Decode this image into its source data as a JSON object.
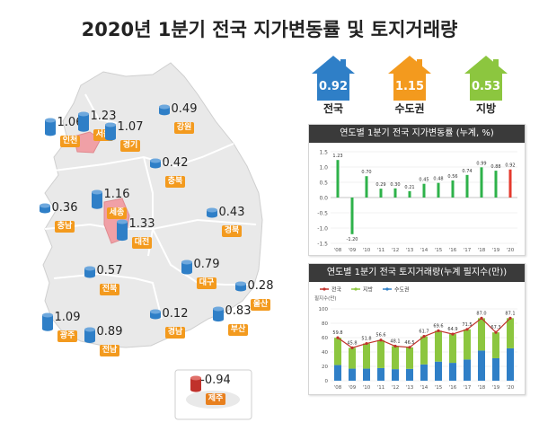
{
  "title": "2020년 1분기 전국 지가변동률 및 토지거래량",
  "summary": [
    {
      "value": "0.92",
      "label": "전국",
      "color": "#2f7fc7"
    },
    {
      "value": "1.15",
      "label": "수도권",
      "color": "#f39a1e"
    },
    {
      "value": "0.53",
      "label": "지방",
      "color": "#8cc63f"
    }
  ],
  "regions": [
    {
      "name": "인천",
      "value": "1.06",
      "level": 1.06
    },
    {
      "name": "서울",
      "value": "1.23",
      "level": 1.23
    },
    {
      "name": "경기",
      "value": "1.07",
      "level": 1.07
    },
    {
      "name": "강원",
      "value": "0.49",
      "level": 0.49
    },
    {
      "name": "충북",
      "value": "0.42",
      "level": 0.42
    },
    {
      "name": "세종",
      "value": "1.16",
      "level": 1.16
    },
    {
      "name": "대전",
      "value": "1.33",
      "level": 1.33
    },
    {
      "name": "충남",
      "value": "0.36",
      "level": 0.36
    },
    {
      "name": "경북",
      "value": "0.43",
      "level": 0.43
    },
    {
      "name": "전북",
      "value": "0.57",
      "level": 0.57
    },
    {
      "name": "대구",
      "value": "0.79",
      "level": 0.79
    },
    {
      "name": "울산",
      "value": "0.28",
      "level": 0.28
    },
    {
      "name": "광주",
      "value": "1.09",
      "level": 1.09
    },
    {
      "name": "전남",
      "value": "0.89",
      "level": 0.89
    },
    {
      "name": "경남",
      "value": "0.12",
      "level": 0.12
    },
    {
      "name": "부산",
      "value": "0.83",
      "level": 0.83
    },
    {
      "name": "제주",
      "value": "-0.94",
      "level": -0.94
    }
  ],
  "chart_data": [
    {
      "type": "bar",
      "title": "연도별 1분기 전국 지가변동률 (누계, %)",
      "categories": [
        "'08",
        "'09",
        "'10",
        "'11",
        "'12",
        "'13",
        "'14",
        "'15",
        "'16",
        "'17",
        "'18",
        "'19",
        "'20"
      ],
      "values": [
        1.23,
        -1.2,
        0.7,
        0.29,
        0.3,
        0.21,
        0.45,
        0.48,
        0.56,
        0.74,
        0.99,
        0.88,
        0.92
      ],
      "highlight_color": "#e53a2e",
      "bar_color": "#2eb24a",
      "yticks": [
        -1.5,
        -1.0,
        -0.5,
        0.0,
        0.5,
        1.0,
        1.5
      ],
      "ylim": [
        -1.5,
        1.5
      ]
    },
    {
      "type": "bar",
      "title": "연도별 1분기 전국 토지거래량(누계 필지수(만))",
      "ylabel": "필지수(만)",
      "categories": [
        "'08",
        "'09",
        "'10",
        "'11",
        "'12",
        "'13",
        "'14",
        "'15",
        "'16",
        "'17",
        "'18",
        "'19",
        "'20"
      ],
      "series": [
        {
          "name": "전국",
          "color": "#c0312b",
          "values": [
            59.8,
            45.8,
            51.8,
            56.6,
            48.1,
            46.5,
            61.7,
            69.6,
            64.9,
            71.5,
            87.0,
            67.3,
            87.1
          ]
        },
        {
          "name": "지방",
          "color": "#8cc63f",
          "values": [
            38,
            29,
            35,
            39,
            32,
            30,
            39,
            43,
            40,
            42,
            45,
            36,
            42
          ]
        },
        {
          "name": "수도권",
          "color": "#2f7fc7",
          "values": [
            21.8,
            16.8,
            16.8,
            17.6,
            16.1,
            16.5,
            22.7,
            26.6,
            24.9,
            29.5,
            42.0,
            31.3,
            45.1
          ]
        }
      ],
      "data_labels": [
        "59.8",
        "45.8",
        "51.8",
        "56.6",
        "48.1",
        "46.5",
        "61.7",
        "69.6",
        "64.9",
        "71.5",
        "87.0",
        "67.3",
        "87.1"
      ],
      "yticks": [
        0,
        20,
        40,
        60,
        80,
        100
      ],
      "ylim": [
        0,
        100
      ]
    }
  ]
}
